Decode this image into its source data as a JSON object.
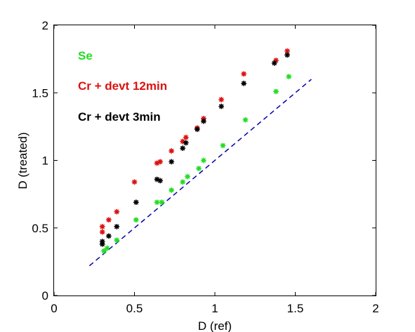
{
  "chart_data": {
    "type": "scatter",
    "xlabel": "D (ref)",
    "ylabel": "D (treated)",
    "xlim": [
      0,
      2
    ],
    "ylim": [
      0,
      2
    ],
    "xticks": [
      "0",
      "0.5",
      "1",
      "1.5",
      "2"
    ],
    "yticks": [
      "0",
      "0.5",
      "1",
      "1.5",
      "2"
    ],
    "grid": false,
    "legend_placement": "top-left",
    "series": [
      {
        "name": "Se",
        "color": "#22dd22",
        "marker": "asterisk",
        "x": [
          0.31,
          0.33,
          0.39,
          0.51,
          0.64,
          0.67,
          0.73,
          0.8,
          0.83,
          0.9,
          0.93,
          1.05,
          1.19,
          1.38,
          1.46
        ],
        "y": [
          0.33,
          0.35,
          0.41,
          0.56,
          0.69,
          0.69,
          0.78,
          0.84,
          0.88,
          0.94,
          1.0,
          1.11,
          1.3,
          1.51,
          1.62
        ]
      },
      {
        "name": "Cr + devt 12min",
        "color": "#dd1111",
        "marker": "asterisk",
        "x": [
          0.3,
          0.3,
          0.34,
          0.39,
          0.5,
          0.64,
          0.66,
          0.73,
          0.8,
          0.82,
          0.89,
          0.93,
          1.04,
          1.18,
          1.38,
          1.45
        ],
        "y": [
          0.47,
          0.51,
          0.56,
          0.62,
          0.84,
          0.98,
          0.99,
          1.07,
          1.14,
          1.17,
          1.24,
          1.31,
          1.45,
          1.64,
          1.74,
          1.81
        ]
      },
      {
        "name": "Cr + devt 3min",
        "color": "#000000",
        "marker": "asterisk",
        "x": [
          0.3,
          0.3,
          0.34,
          0.39,
          0.51,
          0.64,
          0.66,
          0.73,
          0.8,
          0.82,
          0.89,
          0.93,
          1.04,
          1.18,
          1.37,
          1.45
        ],
        "y": [
          0.38,
          0.4,
          0.44,
          0.51,
          0.69,
          0.86,
          0.85,
          0.99,
          1.09,
          1.13,
          1.23,
          1.29,
          1.4,
          1.57,
          1.72,
          1.78
        ]
      }
    ],
    "reference_line": {
      "style": "dashed",
      "color": "#0000aa",
      "x": [
        0.22,
        1.6
      ],
      "y": [
        0.22,
        1.6
      ]
    }
  }
}
